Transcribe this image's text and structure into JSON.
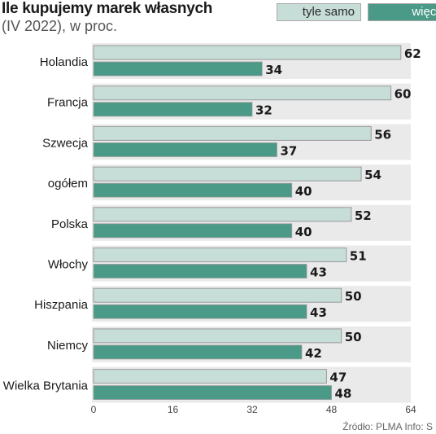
{
  "title": "Ile kupujemy marek własnych",
  "subtitle": "(IV 2022), w proc.",
  "legend": [
    {
      "label": "tyle samo",
      "color": "#c7ddd8"
    },
    {
      "label": "więcej",
      "color": "#4a9a87"
    }
  ],
  "footer": "Źródło: PLMA   Info: S",
  "chart_data": {
    "type": "bar",
    "orientation": "horizontal",
    "title": "Ile kupujemy marek własnych",
    "subtitle": "(IV 2022), w proc.",
    "categories": [
      "Holandia",
      "Francja",
      "Szwecja",
      "ogółem",
      "Polska",
      "Włochy",
      "Hiszpania",
      "Niemcy",
      "Wielka Brytania"
    ],
    "series": [
      {
        "name": "tyle samo",
        "color": "#c7ddd8",
        "values": [
          62,
          60,
          56,
          54,
          52,
          51,
          50,
          50,
          47
        ]
      },
      {
        "name": "więcej",
        "color": "#4a9a87",
        "values": [
          34,
          32,
          37,
          40,
          40,
          43,
          43,
          42,
          48
        ]
      }
    ],
    "xlim": [
      0,
      64
    ],
    "xticks": [
      0,
      16,
      32,
      48,
      64
    ],
    "background_band_color": "#eaeaea",
    "grid": false,
    "legend_position": "top-right"
  }
}
